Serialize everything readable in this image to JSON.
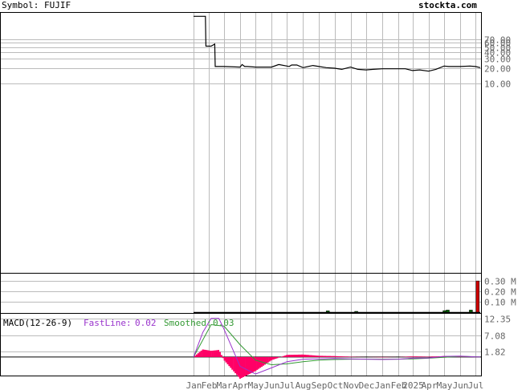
{
  "header": {
    "symbol_label": "Symbol: FUJIF",
    "site": "stockta.com"
  },
  "chart_data": {
    "type": "line",
    "price_panel": {
      "scale": "log",
      "y_ticks": [
        "70.00",
        "60.00",
        "50.00",
        "40.00",
        "30.00",
        "20.00",
        "10.00"
      ],
      "y_tick_values": [
        70,
        60,
        50,
        40,
        30,
        20,
        10
      ],
      "series": [
        {
          "x": [
            "2024-01-02",
            "2024-01-25",
            "2024-01-26",
            "2024-02-05",
            "2024-02-12",
            "2024-02-13",
            "2024-03-01",
            "2024-04-01",
            "2024-04-05",
            "2024-04-10",
            "2024-04-15",
            "2024-05-01",
            "2024-06-01",
            "2024-06-15",
            "2024-07-01",
            "2024-07-05",
            "2024-07-10",
            "2024-07-20",
            "2024-08-01",
            "2024-08-20",
            "2024-09-01",
            "2024-09-15",
            "2024-10-01",
            "2024-10-15",
            "2024-11-01",
            "2024-11-15",
            "2024-12-01",
            "2024-12-15",
            "2025-01-02",
            "2025-02-01",
            "2025-02-15",
            "2025-03-01",
            "2025-03-15",
            "2025-04-01",
            "2025-04-15",
            "2025-05-01",
            "2025-05-10",
            "2025-06-01",
            "2025-06-20",
            "2025-07-01",
            "2025-07-10"
          ],
          "close": [
            190,
            190,
            52,
            52,
            57,
            21.5,
            21.5,
            21,
            23.5,
            21.5,
            21.5,
            21,
            21,
            23.5,
            22,
            21.5,
            23,
            23,
            20.5,
            22.5,
            21.5,
            20.5,
            20,
            19,
            21,
            19,
            18.5,
            19,
            19.5,
            19.5,
            19.5,
            18,
            18.5,
            17.5,
            19,
            22,
            21.5,
            21.5,
            22,
            21.5,
            20.5
          ]
        }
      ]
    },
    "volume_panel": {
      "y_ticks": [
        "0.30 M",
        "0.20 M",
        "0.10 M"
      ],
      "y_tick_values": [
        0.3,
        0.2,
        0.1
      ],
      "bars": [
        {
          "x": "2024-09-18",
          "value": 0.012,
          "color": "green"
        },
        {
          "x": "2024-11-12",
          "value": 0.008,
          "color": "green"
        },
        {
          "x": "2025-05-02",
          "value": 0.015,
          "color": "green"
        },
        {
          "x": "2025-05-08",
          "value": 0.02,
          "color": "green"
        },
        {
          "x": "2025-06-22",
          "value": 0.02,
          "color": "green"
        },
        {
          "x": "2025-07-05",
          "value": 0.3,
          "color": "red"
        }
      ]
    },
    "macd_panel": {
      "title": "MACD(12-26-9)",
      "fastline_label": "FastLine:",
      "fastline_value": "0.02",
      "smoothed_label": "Smoothed:",
      "smoothed_value": "0.03",
      "y_ticks": [
        "12.35",
        "7.08",
        "1.82"
      ],
      "y_tick_values": [
        12.35,
        7.08,
        1.82
      ],
      "fast": {
        "x": [
          "2024-01-02",
          "2024-01-20",
          "2024-02-05",
          "2024-02-20",
          "2024-03-01",
          "2024-04-01",
          "2024-05-01",
          "2024-06-01",
          "2024-07-01",
          "2024-08-01",
          "2024-09-01",
          "2024-10-01",
          "2024-11-01",
          "2024-12-01",
          "2025-01-01",
          "2025-02-01",
          "2025-03-01",
          "2025-04-01",
          "2025-05-01",
          "2025-06-01",
          "2025-07-01",
          "2025-07-10"
        ],
        "y": [
          0,
          8,
          12.5,
          12.5,
          9,
          -3,
          -5.5,
          -3.5,
          -1.5,
          -0.7,
          -0.6,
          -0.5,
          -0.6,
          -0.7,
          -0.8,
          -0.7,
          -0.4,
          -0.3,
          0.2,
          0.3,
          0.05,
          0.02
        ]
      },
      "smoothed": {
        "x": [
          "2024-01-02",
          "2024-01-15",
          "2024-02-05",
          "2024-03-01",
          "2024-04-01",
          "2024-05-01",
          "2024-06-01",
          "2024-07-01",
          "2024-08-01",
          "2024-09-01",
          "2024-10-01",
          "2024-11-01",
          "2024-12-01",
          "2025-01-01",
          "2025-02-01",
          "2025-03-01",
          "2025-04-01",
          "2025-05-01",
          "2025-06-01",
          "2025-07-01",
          "2025-07-10"
        ],
        "y": [
          0,
          4,
          10.5,
          10,
          4,
          -1,
          -2.5,
          -2.2,
          -1.5,
          -1.0,
          -0.8,
          -0.7,
          -0.7,
          -0.7,
          -0.7,
          -0.6,
          -0.4,
          -0.1,
          0.2,
          0.1,
          0.03
        ]
      }
    },
    "x_ticks": [
      {
        "label": "Jan",
        "date": "2024-01-02"
      },
      {
        "label": "Feb",
        "date": "2024-02-01"
      },
      {
        "label": "Mar",
        "date": "2024-03-01"
      },
      {
        "label": "Apr",
        "date": "2024-04-01"
      },
      {
        "label": "May",
        "date": "2024-05-01"
      },
      {
        "label": "Jun",
        "date": "2024-06-01"
      },
      {
        "label": "Jul",
        "date": "2024-07-01"
      },
      {
        "label": "Aug",
        "date": "2024-08-01"
      },
      {
        "label": "Sep",
        "date": "2024-09-01"
      },
      {
        "label": "Oct",
        "date": "2024-10-01"
      },
      {
        "label": "Nov",
        "date": "2024-11-01"
      },
      {
        "label": "Dec",
        "date": "2024-12-01"
      },
      {
        "label": "Jan",
        "date": "2025-01-02"
      },
      {
        "label": "Feb",
        "date": "2025-02-01"
      },
      {
        "label": "2025",
        "date": "2025-03-01"
      },
      {
        "label": "Apr",
        "date": "2025-04-01"
      },
      {
        "label": "May",
        "date": "2025-05-01"
      },
      {
        "label": "Jun",
        "date": "2025-06-01"
      },
      {
        "label": "Jul",
        "date": "2025-07-01"
      }
    ],
    "grid": true,
    "colors": {
      "price": "#000000",
      "fast": "#9933cc",
      "smoothed": "#339933",
      "histogram": "#ff0066",
      "volume_up": "#006600",
      "volume_down": "#cc0000",
      "grid": "#bbbbbb"
    }
  }
}
